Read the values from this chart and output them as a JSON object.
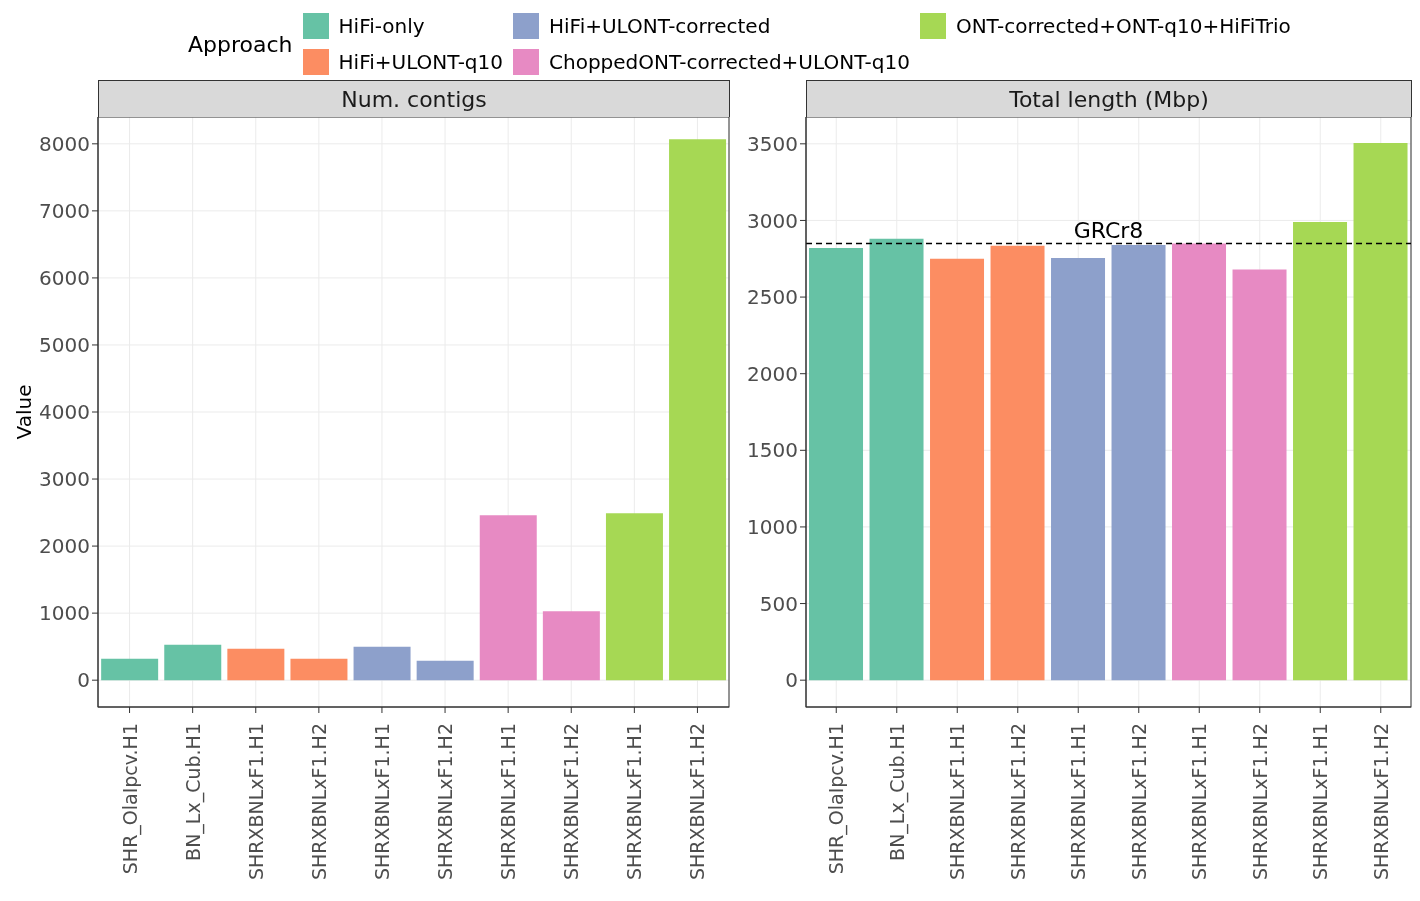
{
  "chart_data": [
    {
      "type": "bar",
      "title": "Num. contigs",
      "ylabel": "Value",
      "legend_title": "Approach",
      "legend": "top",
      "grid": true,
      "stacked": true,
      "categories": [
        "SHR_OlaIpcv.H1",
        "BN_Lx_Cub.H1",
        "SHRXBNLxF1.H1",
        "SHRXBNLxF1.H2",
        "SHRXBNLxF1.H1",
        "SHRXBNLxF1.H2",
        "SHRXBNLxF1.H1",
        "SHRXBNLxF1.H2",
        "SHRXBNLxF1.H1",
        "SHRXBNLxF1.H2"
      ],
      "ylim": [
        -400,
        8400
      ],
      "yticks": [
        0,
        1000,
        2000,
        3000,
        4000,
        5000,
        6000,
        7000,
        8000
      ],
      "series": [
        {
          "name": "HiFi-only",
          "color": "#66c2a5",
          "values": [
            320,
            530,
            null,
            null,
            null,
            null,
            null,
            null,
            null,
            null
          ]
        },
        {
          "name": "HiFi+ULONT-q10",
          "color": "#fc8d62",
          "values": [
            null,
            null,
            470,
            320,
            null,
            null,
            null,
            null,
            null,
            null
          ]
        },
        {
          "name": "HiFi+ULONT-corrected",
          "color": "#8da0cb",
          "values": [
            null,
            null,
            null,
            null,
            500,
            290,
            null,
            null,
            null,
            null
          ]
        },
        {
          "name": "ChoppedONT-corrected+ULONT-q10",
          "color": "#e78ac3",
          "values": [
            null,
            null,
            null,
            null,
            null,
            null,
            2460,
            1030,
            null,
            null
          ]
        },
        {
          "name": "ONT-corrected+ONT-q10+HiFiTrio",
          "color": "#a6d854",
          "values": [
            null,
            null,
            null,
            null,
            null,
            null,
            null,
            null,
            2490,
            8070
          ]
        }
      ]
    },
    {
      "type": "bar",
      "title": "Total length (Mbp)",
      "grid": true,
      "stacked": true,
      "categories": [
        "SHR_OlaIpcv.H1",
        "BN_Lx_Cub.H1",
        "SHRXBNLxF1.H1",
        "SHRXBNLxF1.H2",
        "SHRXBNLxF1.H1",
        "SHRXBNLxF1.H2",
        "SHRXBNLxF1.H1",
        "SHRXBNLxF1.H2",
        "SHRXBNLxF1.H1",
        "SHRXBNLxF1.H2"
      ],
      "ylim": [
        -175,
        3675
      ],
      "yticks": [
        0,
        500,
        1000,
        1500,
        2000,
        2500,
        3000,
        3500
      ],
      "ref_lines": [
        {
          "axis": "y",
          "value": 2850,
          "label": "GRCr8",
          "line_style": "dashed",
          "color": "#000000"
        }
      ],
      "series": [
        {
          "color": "#66c2a5",
          "values": [
            2820,
            2880,
            null,
            null,
            null,
            null,
            null,
            null,
            null,
            null
          ]
        },
        {
          "color": "#fc8d62",
          "values": [
            null,
            null,
            2750,
            2835,
            null,
            null,
            null,
            null,
            null,
            null
          ]
        },
        {
          "color": "#8da0cb",
          "values": [
            null,
            null,
            null,
            null,
            2755,
            2840,
            null,
            null,
            null,
            null
          ]
        },
        {
          "color": "#e78ac3",
          "values": [
            null,
            null,
            null,
            null,
            null,
            null,
            2850,
            2680,
            null,
            null
          ]
        },
        {
          "color": "#a6d854",
          "values": [
            null,
            null,
            null,
            null,
            null,
            null,
            null,
            null,
            2990,
            3505
          ]
        }
      ]
    }
  ]
}
